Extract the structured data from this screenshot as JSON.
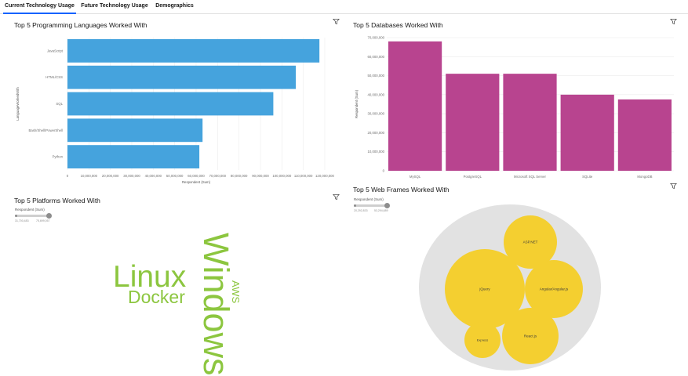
{
  "tabs": [
    {
      "label": "Current Technology Usage",
      "active": true
    },
    {
      "label": "Future Technology Usage",
      "active": false
    },
    {
      "label": "Demographics",
      "active": false
    }
  ],
  "languages_panel": {
    "title": "Top 5 Programming Languages Worked With",
    "chart_data": {
      "type": "bar",
      "orientation": "horizontal",
      "title": "Top 5 Programming Languages Worked With",
      "categories": [
        "JavaScript",
        "HTML/CSS",
        "SQL",
        "Bash/Shell/PowerShell",
        "Python"
      ],
      "values": [
        117500000,
        106500000,
        96000000,
        63000000,
        61500000
      ],
      "xlabel": "Respondent (Sum)",
      "ylabel": "LanguageWorkedWith",
      "xlim": [
        0,
        120000000
      ],
      "xticks": [
        "0",
        "10,000,000",
        "20,000,000",
        "30,000,000",
        "40,000,000",
        "50,000,000",
        "60,000,000",
        "70,000,000",
        "80,000,000",
        "90,000,000",
        "100,000,000",
        "110,000,000",
        "120,000,000"
      ],
      "color": "#45a3dd",
      "grid": true
    }
  },
  "databases_panel": {
    "title": "Top 5 Databases Worked With",
    "chart_data": {
      "type": "bar",
      "orientation": "vertical",
      "title": "Top 5 Databases Worked With",
      "categories": [
        "MySQL",
        "PostgreSQL",
        "Microsoft SQL Server",
        "SQLite",
        "MongoDB"
      ],
      "values": [
        68000000,
        51000000,
        51000000,
        40000000,
        37500000
      ],
      "ylabel": "Respondent (Sum)",
      "ylim": [
        0,
        70000000
      ],
      "yticks": [
        "0",
        "10,000,000",
        "20,000,000",
        "30,000,000",
        "40,000,000",
        "50,000,000",
        "60,000,000",
        "70,000,000"
      ],
      "color": "#b8448f",
      "grid": true
    }
  },
  "platforms_panel": {
    "title": "Top 5 Platforms Worked With",
    "legend_title": "Respondent (Sum)",
    "legend_min": "31,700,483",
    "legend_max": "75,699,057",
    "words": [
      "Windows",
      "Linux",
      "Docker",
      "AWS"
    ],
    "word_color": "#8cc63f"
  },
  "frames_panel": {
    "title": "Top 5 Web Frames Worked With",
    "legend_title": "Respondent (Sum)",
    "legend_min": "20,292,833",
    "legend_max": "53,294,689",
    "bubble_color": "#f4cf30",
    "container_color": "#e2e2e2",
    "bubbles": [
      "ASP.NET",
      "jQuery",
      "Angular/Angular.js",
      "React.js",
      "Express"
    ]
  }
}
